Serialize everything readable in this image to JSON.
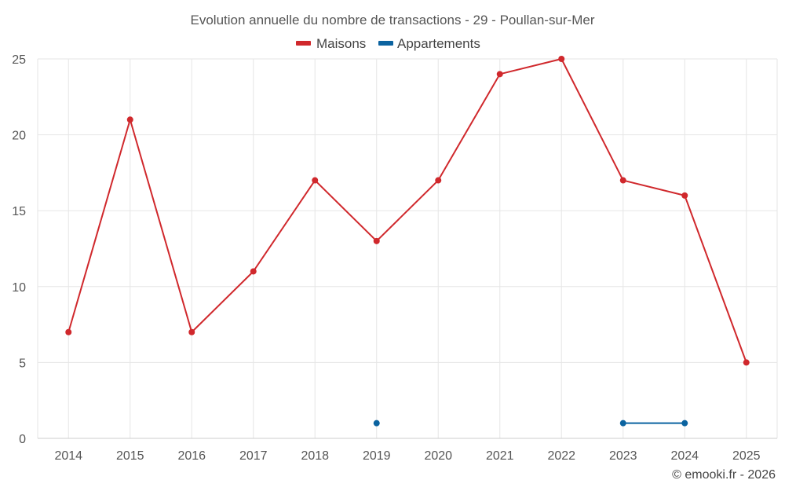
{
  "chart_data": {
    "type": "line",
    "title": "Evolution annuelle du nombre de transactions - 29 - Poullan-sur-Mer",
    "categories": [
      "2014",
      "2015",
      "2016",
      "2017",
      "2018",
      "2019",
      "2020",
      "2021",
      "2022",
      "2023",
      "2024",
      "2025"
    ],
    "series": [
      {
        "name": "Maisons",
        "color": "#d0282c",
        "values": [
          7,
          21,
          7,
          11,
          17,
          13,
          17,
          24,
          25,
          17,
          16,
          5
        ]
      },
      {
        "name": "Appartements",
        "color": "#0b63a0",
        "values": [
          null,
          null,
          null,
          null,
          null,
          1,
          null,
          null,
          null,
          1,
          1,
          null
        ]
      }
    ],
    "ylim": [
      0,
      25
    ],
    "yticks": [
      0,
      5,
      10,
      15,
      20,
      25
    ],
    "xlabel": "",
    "ylabel": "",
    "grid": true,
    "legend": "top-center"
  },
  "credit": "© emooki.fr - 2026"
}
